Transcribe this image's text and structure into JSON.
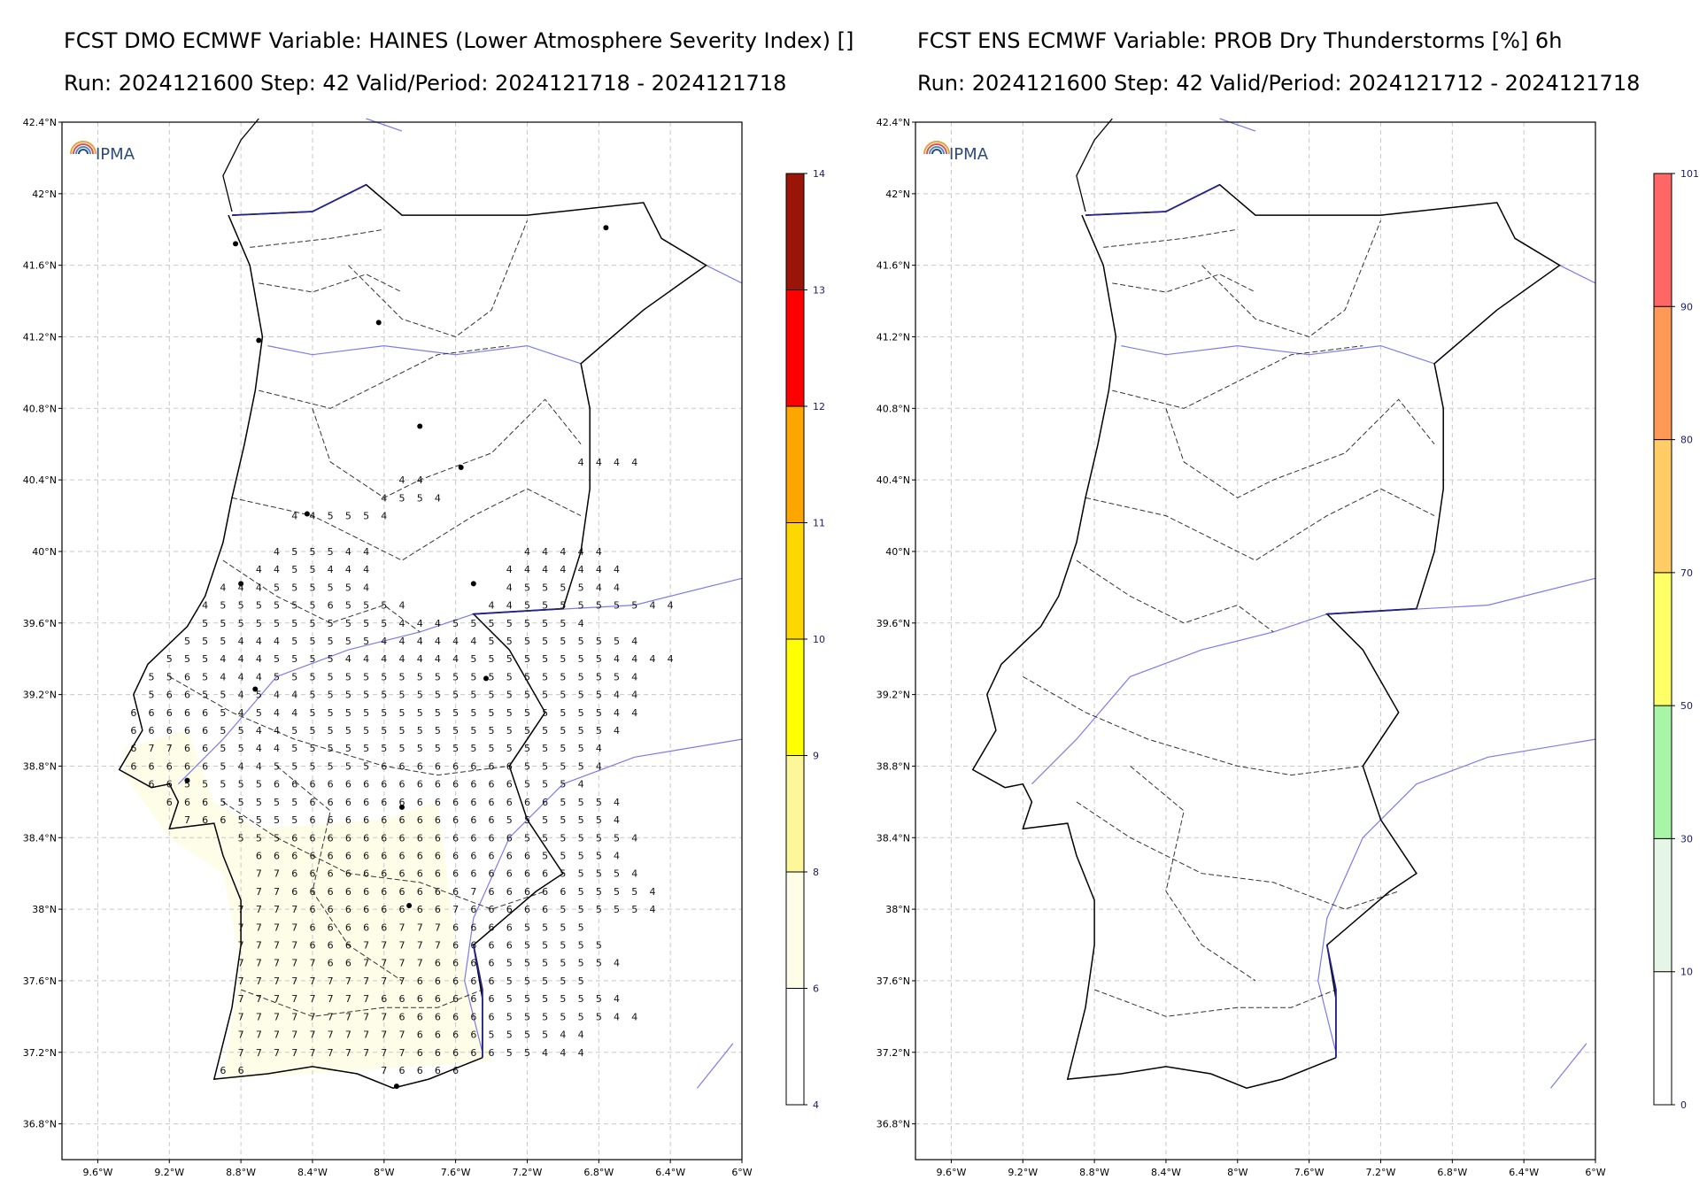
{
  "panels": [
    {
      "id": "haines",
      "title": "FCST DMO ECMWF Variable: HAINES (Lower Atmosphere Severity Index) []",
      "subtitle": "Run: 2024121600 Step: 42 Valid/Period: 2024121718 - 2024121718",
      "logo": "IPMA",
      "colorbar": {
        "ticks": [
          "4",
          "6",
          "8",
          "9",
          "10",
          "11",
          "12",
          "13",
          "14"
        ],
        "colors": [
          "#ffffff",
          "#fefde8",
          "#fdf79a",
          "#ffff00",
          "#ffd700",
          "#ffa500",
          "#ff0000",
          "#9b1408"
        ]
      }
    },
    {
      "id": "dry-thunderstorms",
      "title": "FCST ENS ECMWF Variable: PROB Dry Thunderstorms [%] 6h",
      "subtitle": "Run: 2024121600 Step: 42 Valid/Period: 2024121712 - 2024121718",
      "logo": "IPMA",
      "colorbar": {
        "ticks": [
          "0",
          "10",
          "30",
          "50",
          "70",
          "80",
          "90",
          "101"
        ],
        "colors": [
          "#ffffff",
          "#e6f6e6",
          "#a8f5a8",
          "#ffff66",
          "#ffcc66",
          "#ff9955",
          "#ff6666"
        ]
      }
    }
  ],
  "map": {
    "lat_ticks": [
      "42.4°N",
      "42°N",
      "41.6°N",
      "41.2°N",
      "40.8°N",
      "40.4°N",
      "40°N",
      "39.6°N",
      "39.2°N",
      "38.8°N",
      "38.4°N",
      "38°N",
      "37.6°N",
      "37.2°N",
      "36.8°N"
    ],
    "lon_ticks": [
      "9.6°W",
      "9.2°W",
      "8.8°W",
      "8.4°W",
      "8°W",
      "7.6°W",
      "7.2°W",
      "6.8°W",
      "6.4°W",
      "6°W"
    ],
    "lat_range": [
      36.6,
      42.4
    ],
    "lon_range": [
      -9.8,
      -6.0
    ]
  },
  "haines_grid": {
    "rows": [
      {
        "lat": 40.5,
        "start": -6.9,
        "values": "4444"
      },
      {
        "lat": 40.4,
        "start": -7.9,
        "values": "44"
      },
      {
        "lat": 40.3,
        "start": -8.0,
        "values": "4554"
      },
      {
        "lat": 40.2,
        "start": -8.5,
        "values": "445554"
      },
      {
        "lat": 40.0,
        "start": -8.6,
        "values": "455544"
      },
      {
        "lat": 40.0,
        "start": -7.2,
        "values": "44444"
      },
      {
        "lat": 39.9,
        "start": -8.7,
        "values": "4455444"
      },
      {
        "lat": 39.9,
        "start": -7.3,
        "values": "4444444"
      },
      {
        "lat": 39.8,
        "start": -8.9,
        "values": "444555554"
      },
      {
        "lat": 39.8,
        "start": -7.3,
        "values": "4555544"
      },
      {
        "lat": 39.7,
        "start": -9.0,
        "values": "455555565554"
      },
      {
        "lat": 39.7,
        "start": -7.4,
        "values": "44555555544"
      },
      {
        "lat": 39.6,
        "start": -9.0,
        "values": "5555555555544455555554"
      },
      {
        "lat": 39.5,
        "start": -9.1,
        "values": "55544455555444444555555554"
      },
      {
        "lat": 39.4,
        "start": -9.2,
        "values": "55544455554444444555555554444"
      },
      {
        "lat": 39.3,
        "start": -9.3,
        "values": "5565444555555555555555555554"
      },
      {
        "lat": 39.2,
        "start": -9.3,
        "values": "5665545445555555555555555544"
      },
      {
        "lat": 39.1,
        "start": -9.4,
        "values": "66666545445555555555555555544"
      },
      {
        "lat": 39.0,
        "start": -9.4,
        "values": "6666655445555555555555555554"
      },
      {
        "lat": 38.9,
        "start": -9.4,
        "values": "677665544555555555555555554"
      },
      {
        "lat": 38.8,
        "start": -9.4,
        "values": "666665445555556666666655554"
      },
      {
        "lat": 38.7,
        "start": -9.3,
        "values": "6655555666666666666665554"
      },
      {
        "lat": 38.6,
        "start": -9.2,
        "values": "66655555666666666666665554"
      },
      {
        "lat": 38.5,
        "start": -9.1,
        "values": "7665555666666666665555554"
      },
      {
        "lat": 38.4,
        "start": -8.8,
        "values": "55566666666666665555554"
      },
      {
        "lat": 38.3,
        "start": -8.7,
        "values": "666666666666666655554"
      },
      {
        "lat": 38.2,
        "start": -8.7,
        "values": "7766666666666666655554"
      },
      {
        "lat": 38.1,
        "start": -8.7,
        "values": "77666666666676666655554"
      },
      {
        "lat": 38.0,
        "start": -8.8,
        "values": "777766666666766666555554"
      },
      {
        "lat": 37.9,
        "start": -8.8,
        "values": "77776666677766665555"
      },
      {
        "lat": 37.8,
        "start": -8.8,
        "values": "777766677777666655555"
      },
      {
        "lat": 37.7,
        "start": -8.8,
        "values": "7777766777766665555554"
      },
      {
        "lat": 37.6,
        "start": -8.8,
        "values": "77777777776666655555"
      },
      {
        "lat": 37.5,
        "start": -8.8,
        "values": "7777777766666665555554"
      },
      {
        "lat": 37.4,
        "start": -8.8,
        "values": "77777777766666655555544"
      },
      {
        "lat": 37.3,
        "start": -8.8,
        "values": "77777777776666555544"
      },
      {
        "lat": 37.2,
        "start": -8.8,
        "values": "77777777776666655444"
      },
      {
        "lat": 37.1,
        "start": -8.9,
        "values": "66"
      },
      {
        "lat": 37.1,
        "start": -8.0,
        "values": "76666"
      }
    ]
  }
}
